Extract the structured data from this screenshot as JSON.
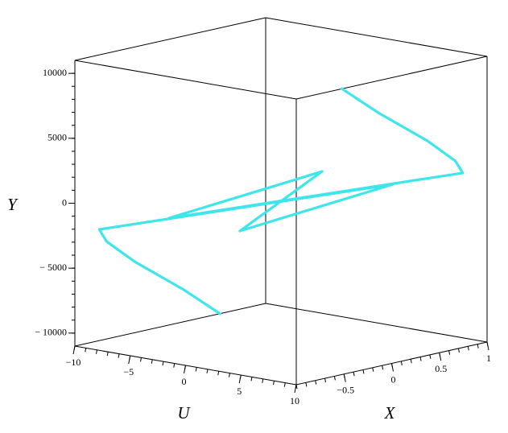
{
  "chart_data": {
    "type": "line3d",
    "u_label": "U",
    "x_label": "X",
    "y_label": "Y",
    "ulim": [
      -10,
      10
    ],
    "xlim": [
      -1,
      1
    ],
    "ylim": [
      -11000,
      11000
    ],
    "uticks": [
      {
        "value": -10,
        "label": "−10"
      },
      {
        "value": -5,
        "label": "−5"
      },
      0,
      5,
      10
    ],
    "xticks": [
      {
        "value": -0.5,
        "label": "−0.5"
      },
      0,
      0.5,
      1
    ],
    "yticks": [
      {
        "value": -10000,
        "label": "− 10000"
      },
      {
        "value": -5000,
        "label": "− 5000"
      },
      0,
      5000,
      10000
    ],
    "uminorticks": [
      -10,
      -9,
      -8,
      -7,
      -6,
      -5,
      -4,
      -3,
      -2,
      -1,
      0,
      1,
      2,
      3,
      4,
      5,
      6,
      7,
      8,
      9,
      10
    ],
    "xminorticks": [
      -1,
      -0.9,
      -0.8,
      -0.7,
      -0.6,
      -0.5,
      -0.4,
      -0.3,
      -0.2,
      -0.1,
      0,
      0.1,
      0.2,
      0.3,
      0.4,
      0.5,
      0.6,
      0.7,
      0.8,
      0.9,
      1
    ],
    "yminorticks": [
      -10000,
      -9000,
      -8000,
      -7000,
      -6000,
      -5000,
      -4000,
      -3000,
      -2000,
      -1000,
      0,
      1000,
      2000,
      3000,
      4000,
      5000,
      6000,
      7000,
      8000,
      9000,
      10000
    ],
    "color": "#3ee6ec",
    "u": [
      8,
      7.5,
      7,
      7.3,
      7.8,
      -1.5,
      -4.9,
      0,
      4.9,
      1.5,
      -7.8,
      -7.3,
      -7,
      -7.5,
      -8
    ],
    "x": [
      -0.29,
      0.15,
      0.72,
      0.98,
      1,
      -1,
      1,
      0,
      -1,
      1,
      -1,
      -0.98,
      -0.72,
      -0.15,
      0.29
    ],
    "y": [
      10330,
      7680,
      4520,
      2580,
      1690,
      120,
      -80,
      0,
      80,
      -120,
      -1690,
      -2580,
      -4520,
      -7680,
      -10330
    ]
  }
}
